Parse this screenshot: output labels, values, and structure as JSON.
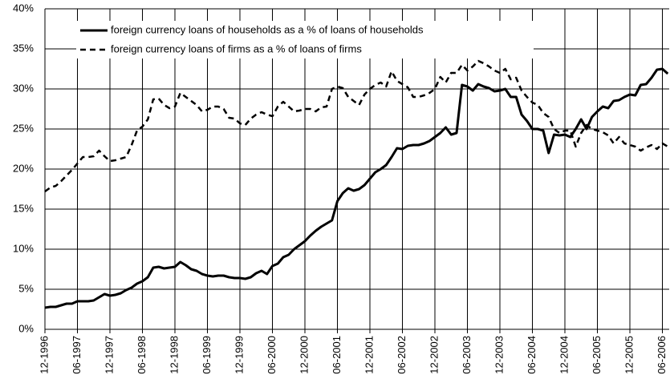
{
  "chart_data": {
    "type": "line",
    "categories": [
      "12-1996",
      null,
      null,
      null,
      null,
      null,
      "06-1997",
      null,
      null,
      null,
      null,
      null,
      "12-1997",
      null,
      null,
      null,
      null,
      null,
      "06-1998",
      null,
      null,
      null,
      null,
      null,
      "12-1998",
      null,
      null,
      null,
      null,
      null,
      "06-1999",
      null,
      null,
      null,
      null,
      null,
      "12-1999",
      null,
      null,
      null,
      null,
      null,
      "06-2000",
      null,
      null,
      null,
      null,
      null,
      "12-2000",
      null,
      null,
      null,
      null,
      null,
      "06-2001",
      null,
      null,
      null,
      null,
      null,
      "12-2001",
      null,
      null,
      null,
      null,
      null,
      "06-2002",
      null,
      null,
      null,
      null,
      null,
      "12-2002",
      null,
      null,
      null,
      null,
      null,
      "06-2003",
      null,
      null,
      null,
      null,
      null,
      "12-2003",
      null,
      null,
      null,
      null,
      null,
      "06-2004",
      null,
      null,
      null,
      null,
      null,
      "12-2004",
      null,
      null,
      null,
      null,
      null,
      "06-2005",
      null,
      null,
      null,
      null,
      null,
      "12-2005",
      null,
      null,
      null,
      null,
      null,
      "06-2006",
      null
    ],
    "series": [
      {
        "name": "foreign currency loans of households as a % of loans of households",
        "color": "#000000",
        "style": "solid",
        "values": [
          2.7,
          2.8,
          2.8,
          3.0,
          3.2,
          3.2,
          3.5,
          3.5,
          3.5,
          3.6,
          4.0,
          4.4,
          4.2,
          4.3,
          4.5,
          4.9,
          5.2,
          5.7,
          6.0,
          6.5,
          7.7,
          7.8,
          7.6,
          7.7,
          7.8,
          8.4,
          8.0,
          7.5,
          7.3,
          6.9,
          6.7,
          6.6,
          6.7,
          6.7,
          6.5,
          6.4,
          6.4,
          6.3,
          6.5,
          7.0,
          7.3,
          6.9,
          7.9,
          8.2,
          9.0,
          9.3,
          10.0,
          10.5,
          11.0,
          11.7,
          12.3,
          12.8,
          13.2,
          13.6,
          16.0,
          17.0,
          17.6,
          17.3,
          17.5,
          18.0,
          18.8,
          19.6,
          20.0,
          20.5,
          21.5,
          22.6,
          22.5,
          22.9,
          23.0,
          23.0,
          23.2,
          23.5,
          24.0,
          24.5,
          25.2,
          24.3,
          24.5,
          30.5,
          30.3,
          29.8,
          30.6,
          30.3,
          30.1,
          29.7,
          29.8,
          30.0,
          29.0,
          29.0,
          26.8,
          26.0,
          25.0,
          25.0,
          24.8,
          22.0,
          24.3,
          24.2,
          24.3,
          24.0,
          25.0,
          26.2,
          25.0,
          26.5,
          27.2,
          27.8,
          27.6,
          28.5,
          28.6,
          29.0,
          29.3,
          29.2,
          30.5,
          30.6,
          31.4,
          32.4,
          32.5,
          31.9
        ]
      },
      {
        "name": "foreign currency loans of firms as a % of loans of firms",
        "color": "#000000",
        "style": "dashed",
        "values": [
          17.2,
          17.7,
          17.9,
          18.5,
          19.2,
          19.9,
          20.7,
          21.5,
          21.5,
          21.6,
          22.3,
          21.6,
          21.0,
          21.1,
          21.3,
          21.5,
          23.0,
          24.8,
          25.3,
          26.2,
          28.7,
          28.8,
          28.0,
          27.6,
          27.8,
          29.5,
          29.0,
          28.5,
          28.0,
          27.2,
          27.4,
          27.8,
          27.8,
          27.5,
          26.4,
          26.3,
          25.7,
          25.5,
          26.3,
          26.8,
          27.1,
          26.8,
          26.6,
          27.8,
          28.4,
          27.8,
          27.2,
          27.3,
          27.5,
          27.5,
          27.2,
          27.7,
          27.8,
          30.0,
          30.3,
          30.1,
          29.0,
          28.5,
          28.0,
          29.3,
          30.0,
          30.5,
          30.8,
          30.3,
          32.2,
          31.0,
          30.6,
          30.2,
          29.0,
          29.0,
          29.2,
          29.5,
          30.0,
          31.5,
          30.8,
          32.0,
          32.0,
          33.0,
          32.3,
          32.8,
          33.5,
          33.2,
          32.8,
          32.3,
          32.0,
          32.5,
          31.2,
          31.4,
          29.8,
          29.0,
          28.3,
          28.0,
          27.0,
          26.5,
          25.0,
          24.5,
          24.8,
          24.8,
          22.8,
          24.5,
          25.5,
          25.0,
          24.8,
          24.6,
          24.2,
          23.2,
          24.0,
          23.2,
          23.0,
          22.8,
          22.3,
          22.7,
          23.0,
          22.5,
          23.2,
          22.8
        ]
      }
    ],
    "ylim": [
      0,
      40
    ],
    "yticks": [
      {
        "value": 0,
        "label": "0%"
      },
      {
        "value": 5,
        "label": "5%"
      },
      {
        "value": 10,
        "label": "10%"
      },
      {
        "value": 15,
        "label": "15%"
      },
      {
        "value": 20,
        "label": "20%"
      },
      {
        "value": 25,
        "label": "25%"
      },
      {
        "value": 30,
        "label": "30%"
      },
      {
        "value": 35,
        "label": "35%"
      },
      {
        "value": 40,
        "label": "40%"
      }
    ],
    "grid": true,
    "legend": "top-left"
  }
}
